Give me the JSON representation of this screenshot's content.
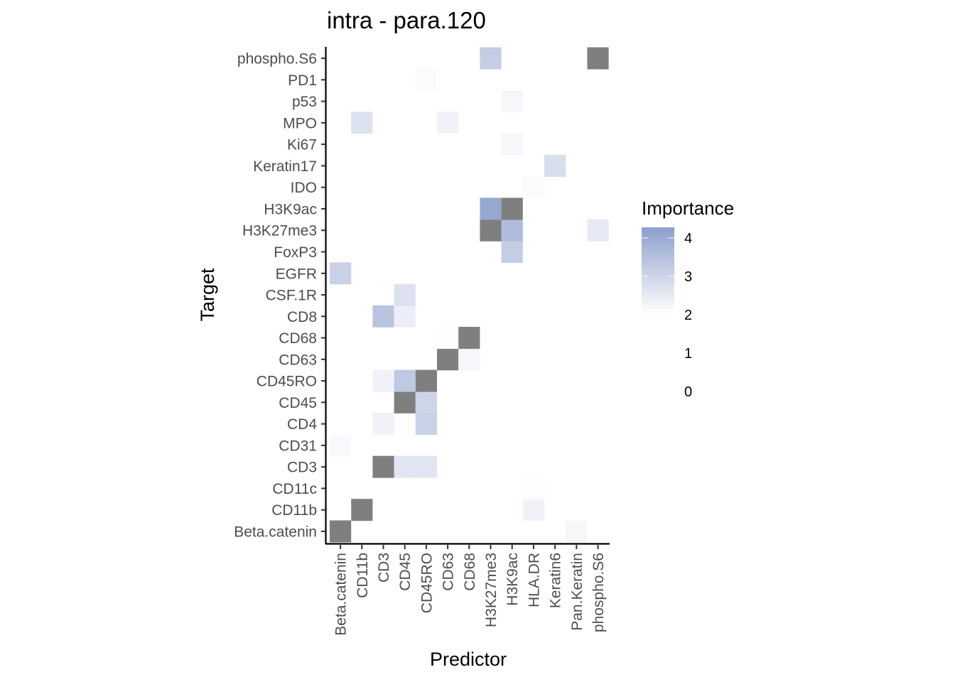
{
  "chart_data": {
    "type": "heatmap",
    "title": "intra - para.120",
    "xlabel": "Predictor",
    "ylabel": "Target",
    "x_categories": [
      "Beta.catenin",
      "CD11b",
      "CD3",
      "CD45",
      "CD45RO",
      "CD63",
      "CD68",
      "H3K27me3",
      "H3K9ac",
      "HLA.DR",
      "Keratin6",
      "Pan.Keratin",
      "phospho.S6"
    ],
    "y_categories": [
      "Beta.catenin",
      "CD11b",
      "CD11c",
      "CD3",
      "CD31",
      "CD4",
      "CD45",
      "CD45RO",
      "CD63",
      "CD68",
      "CD8",
      "CSF.1R",
      "EGFR",
      "FoxP3",
      "H3K27me3",
      "H3K9ac",
      "IDO",
      "Keratin17",
      "Ki67",
      "MPO",
      "p53",
      "PD1",
      "phospho.S6"
    ],
    "cells": [
      {
        "x": "Beta.catenin",
        "y": "Beta.catenin",
        "value": null
      },
      {
        "x": "Pan.Keratin",
        "y": "Beta.catenin",
        "value": 2.2
      },
      {
        "x": "CD11b",
        "y": "CD11b",
        "value": null
      },
      {
        "x": "HLA.DR",
        "y": "CD11b",
        "value": 2.3
      },
      {
        "x": "HLA.DR",
        "y": "CD11c",
        "value": 2.05
      },
      {
        "x": "CD3",
        "y": "CD3",
        "value": null
      },
      {
        "x": "CD45",
        "y": "CD3",
        "value": 2.6
      },
      {
        "x": "CD45RO",
        "y": "CD3",
        "value": 2.6
      },
      {
        "x": "Beta.catenin",
        "y": "CD31",
        "value": 2.15
      },
      {
        "x": "CD3",
        "y": "CD4",
        "value": 2.3
      },
      {
        "x": "CD45",
        "y": "CD4",
        "value": 2.05
      },
      {
        "x": "CD45RO",
        "y": "CD4",
        "value": 3.1
      },
      {
        "x": "CD45",
        "y": "CD45",
        "value": null
      },
      {
        "x": "CD45RO",
        "y": "CD45",
        "value": 3.0
      },
      {
        "x": "CD3",
        "y": "CD45RO",
        "value": 2.3
      },
      {
        "x": "CD45",
        "y": "CD45RO",
        "value": 3.3
      },
      {
        "x": "CD45RO",
        "y": "CD45RO",
        "value": null
      },
      {
        "x": "CD63",
        "y": "CD63",
        "value": null
      },
      {
        "x": "CD68",
        "y": "CD63",
        "value": 2.2
      },
      {
        "x": "CD63",
        "y": "CD68",
        "value": 2.05
      },
      {
        "x": "CD68",
        "y": "CD68",
        "value": null
      },
      {
        "x": "CD3",
        "y": "CD8",
        "value": 3.4
      },
      {
        "x": "CD45",
        "y": "CD8",
        "value": 2.4
      },
      {
        "x": "CD45",
        "y": "CSF.1R",
        "value": 2.7
      },
      {
        "x": "Beta.catenin",
        "y": "EGFR",
        "value": 3.1
      },
      {
        "x": "H3K9ac",
        "y": "FoxP3",
        "value": 3.2
      },
      {
        "x": "H3K27me3",
        "y": "H3K27me3",
        "value": null
      },
      {
        "x": "H3K9ac",
        "y": "H3K27me3",
        "value": 3.6
      },
      {
        "x": "phospho.S6",
        "y": "H3K27me3",
        "value": 2.5
      },
      {
        "x": "H3K27me3",
        "y": "H3K9ac",
        "value": 4.1
      },
      {
        "x": "H3K9ac",
        "y": "H3K9ac",
        "value": null
      },
      {
        "x": "HLA.DR",
        "y": "IDO",
        "value": 2.1
      },
      {
        "x": "Keratin6",
        "y": "Keratin17",
        "value": 2.8
      },
      {
        "x": "H3K9ac",
        "y": "Ki67",
        "value": 2.2
      },
      {
        "x": "CD11b",
        "y": "MPO",
        "value": 2.7
      },
      {
        "x": "CD63",
        "y": "MPO",
        "value": 2.3
      },
      {
        "x": "H3K9ac",
        "y": "p53",
        "value": 2.2
      },
      {
        "x": "CD45RO",
        "y": "PD1",
        "value": 2.1
      },
      {
        "x": "H3K27me3",
        "y": "phospho.S6",
        "value": 3.2
      },
      {
        "x": "phospho.S6",
        "y": "phospho.S6",
        "value": null
      }
    ],
    "color_scale": {
      "low_value": 2,
      "high_value": 4.3,
      "low_color": "#ffffff",
      "high_color": "#8c9fcc",
      "na_color": "#7f7f7f"
    },
    "legend": {
      "title": "Importance",
      "labels": [
        "4",
        "3",
        "2",
        "1",
        "0"
      ],
      "position": "right"
    }
  }
}
